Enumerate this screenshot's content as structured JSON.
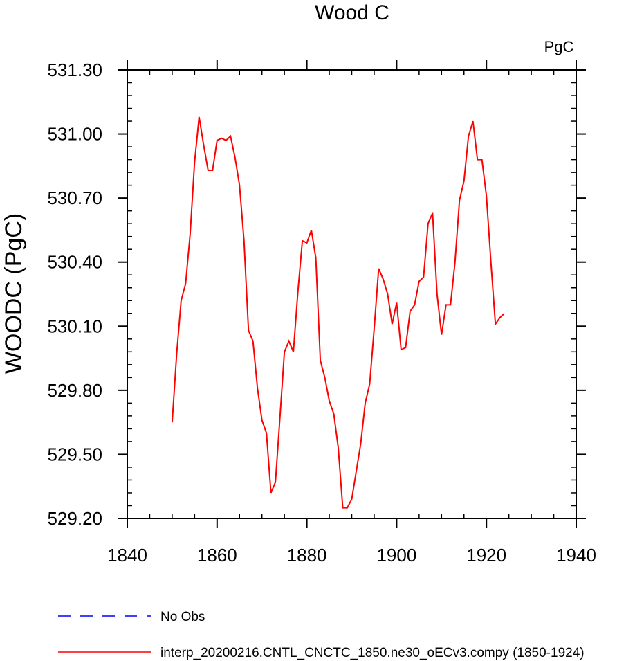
{
  "chart_data": {
    "type": "line",
    "title": "Wood C",
    "units_label": "PgC",
    "ylabel": "WOODC  (PgC)",
    "xlabel": "",
    "xlim": [
      1840,
      1940
    ],
    "ylim": [
      529.2,
      531.3
    ],
    "xticks": [
      1840,
      1860,
      1880,
      1900,
      1920,
      1940
    ],
    "xtick_labels": [
      "1840",
      "1860",
      "1880",
      "1900",
      "1920",
      "1940"
    ],
    "yticks": [
      529.2,
      529.5,
      529.8,
      530.1,
      530.4,
      530.7,
      531.0,
      531.3
    ],
    "ytick_labels": [
      "529.20",
      "529.50",
      "529.80",
      "530.10",
      "530.40",
      "530.70",
      "531.00",
      "531.30"
    ],
    "grid": false,
    "legend_position": "bottom",
    "series": [
      {
        "name": "interp_20200216.CNTL_CNCTC_1850.ne30_oECv3.compy (1850-1924)",
        "color": "#ff0000",
        "style": "solid",
        "x": [
          1850,
          1851,
          1852,
          1853,
          1854,
          1855,
          1856,
          1857,
          1858,
          1859,
          1860,
          1861,
          1862,
          1863,
          1864,
          1865,
          1866,
          1867,
          1868,
          1869,
          1870,
          1871,
          1872,
          1873,
          1874,
          1875,
          1876,
          1877,
          1878,
          1879,
          1880,
          1881,
          1882,
          1883,
          1884,
          1885,
          1886,
          1887,
          1888,
          1889,
          1890,
          1891,
          1892,
          1893,
          1894,
          1895,
          1896,
          1897,
          1898,
          1899,
          1900,
          1901,
          1902,
          1903,
          1904,
          1905,
          1906,
          1907,
          1908,
          1909,
          1910,
          1911,
          1912,
          1913,
          1914,
          1915,
          1916,
          1917,
          1918,
          1919,
          1920,
          1921,
          1922,
          1923,
          1924
        ],
        "values": [
          529.65,
          529.97,
          530.22,
          530.3,
          530.53,
          530.87,
          531.08,
          530.95,
          530.83,
          530.83,
          530.97,
          530.98,
          530.97,
          530.99,
          530.89,
          530.76,
          530.5,
          530.08,
          530.03,
          529.81,
          529.66,
          529.6,
          529.32,
          529.37,
          529.67,
          529.98,
          530.03,
          529.98,
          530.26,
          530.5,
          530.49,
          530.55,
          530.42,
          529.94,
          529.86,
          529.75,
          529.69,
          529.53,
          529.25,
          529.25,
          529.29,
          529.42,
          529.55,
          529.74,
          529.83,
          530.09,
          530.37,
          530.32,
          530.25,
          530.11,
          530.21,
          529.99,
          530.0,
          530.17,
          530.2,
          530.31,
          530.33,
          530.58,
          530.63,
          530.25,
          530.06,
          530.2,
          530.2,
          530.4,
          530.69,
          530.78,
          530.99,
          531.06,
          530.88,
          530.88,
          530.71,
          530.4,
          530.11,
          530.14,
          530.16
        ]
      },
      {
        "name": "No Obs",
        "color": "#0000ff",
        "style": "dashed",
        "x": [],
        "values": []
      }
    ]
  }
}
